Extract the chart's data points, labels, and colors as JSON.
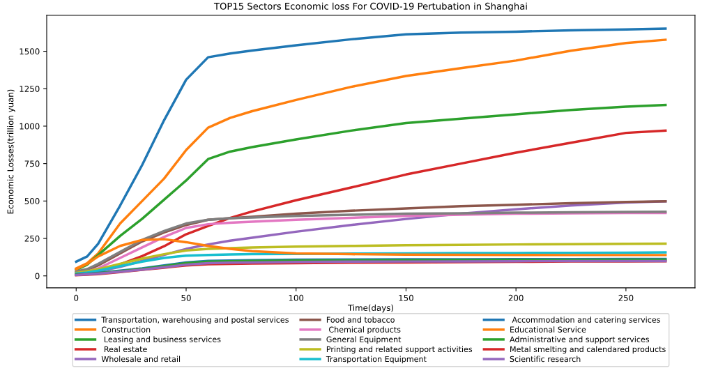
{
  "chart_data": {
    "type": "line",
    "title": "TOP15 Sectors Economic loss For COVID-19 Pertubation in Shanghai",
    "xlabel": "Time(days)",
    "ylabel": "Economic Losses(trillion yuan)",
    "x": [
      0,
      5,
      10,
      20,
      30,
      40,
      50,
      60,
      70,
      80,
      100,
      125,
      150,
      175,
      200,
      225,
      250,
      268
    ],
    "xlim": [
      -13.4,
      281.4
    ],
    "xticks": [
      0,
      50,
      100,
      150,
      200,
      250
    ],
    "ylim": [
      -80,
      1740
    ],
    "yticks": [
      0,
      250,
      500,
      750,
      1000,
      1250,
      1500
    ],
    "grid": false,
    "legend": "bottom",
    "marker": "none",
    "line_style": "solid",
    "series": [
      {
        "name": "Transportation, warehousing and postal services",
        "color": "#1f77b4",
        "values": [
          95,
          130,
          215,
          470,
          740,
          1040,
          1310,
          1460,
          1485,
          1505,
          1540,
          1580,
          1613,
          1625,
          1631,
          1640,
          1646,
          1651
        ]
      },
      {
        "name": "Construction",
        "color": "#ff7f0e",
        "values": [
          50,
          85,
          150,
          350,
          500,
          650,
          840,
          990,
          1055,
          1100,
          1175,
          1262,
          1335,
          1387,
          1438,
          1504,
          1555,
          1577
        ]
      },
      {
        "name": " Leasing and business services",
        "color": "#2ca02c",
        "values": [
          40,
          75,
          139,
          267,
          381,
          509,
          637,
          780,
          830,
          860,
          911,
          970,
          1021,
          1050,
          1079,
          1108,
          1130,
          1141
        ]
      },
      {
        "name": " Real estate",
        "color": "#d62728",
        "values": [
          20,
          28,
          40,
          77,
          132,
          198,
          278,
          333,
          387,
          430,
          505,
          590,
          677,
          750,
          823,
          889,
          955,
          970
        ]
      },
      {
        "name": "Wholesale and retail",
        "color": "#9467bd",
        "values": [
          10,
          18,
          30,
          60,
          100,
          140,
          180,
          210,
          235,
          255,
          295,
          340,
          380,
          415,
          445,
          470,
          490,
          498
        ]
      },
      {
        "name": "Food and tobacco",
        "color": "#8c564b",
        "values": [
          25,
          40,
          70,
          150,
          230,
          290,
          340,
          375,
          385,
          395,
          415,
          435,
          450,
          465,
          475,
          485,
          494,
          498
        ]
      },
      {
        "name": " Chemical products",
        "color": "#e377c2",
        "values": [
          15,
          28,
          50,
          120,
          190,
          260,
          320,
          345,
          355,
          362,
          375,
          388,
          400,
          408,
          415,
          418,
          420,
          420
        ]
      },
      {
        "name": "General Equipment",
        "color": "#7f7f7f",
        "values": [
          30,
          45,
          80,
          160,
          240,
          300,
          350,
          375,
          385,
          390,
          400,
          408,
          415,
          418,
          422,
          425,
          427,
          428
        ]
      },
      {
        "name": "Printing and related support activities",
        "color": "#bcbd22",
        "values": [
          20,
          30,
          45,
          80,
          115,
          145,
          170,
          180,
          185,
          190,
          195,
          200,
          205,
          207,
          210,
          212,
          214,
          215
        ]
      },
      {
        "name": "Transportation Equipment",
        "color": "#17becf",
        "values": [
          15,
          22,
          35,
          65,
          95,
          120,
          135,
          140,
          143,
          145,
          147,
          149,
          150,
          152,
          153,
          154,
          155,
          157
        ]
      },
      {
        "name": " Accommodation and catering services",
        "color": "#1f77b4",
        "values": [
          10,
          14,
          20,
          35,
          50,
          70,
          90,
          100,
          103,
          105,
          108,
          109,
          110,
          111,
          112,
          112,
          113,
          113
        ]
      },
      {
        "name": "Educational Service",
        "color": "#ff7f0e",
        "values": [
          45,
          80,
          130,
          200,
          240,
          245,
          225,
          200,
          180,
          165,
          150,
          145,
          142,
          141,
          140,
          139,
          139,
          139
        ]
      },
      {
        "name": "Administrative and support services",
        "color": "#2ca02c",
        "values": [
          8,
          12,
          18,
          32,
          47,
          65,
          85,
          95,
          98,
          100,
          103,
          104,
          105,
          106,
          107,
          107,
          108,
          108
        ]
      },
      {
        "name": "Metal smelting and calendared products",
        "color": "#d62728",
        "values": [
          5,
          8,
          12,
          25,
          40,
          55,
          70,
          78,
          80,
          82,
          85,
          88,
          90,
          92,
          94,
          96,
          97,
          98
        ]
      },
      {
        "name": "Scientific research",
        "color": "#9467bd",
        "values": [
          6,
          10,
          15,
          28,
          42,
          58,
          75,
          85,
          88,
          90,
          93,
          95,
          96,
          97,
          98,
          99,
          99,
          99
        ]
      }
    ]
  }
}
